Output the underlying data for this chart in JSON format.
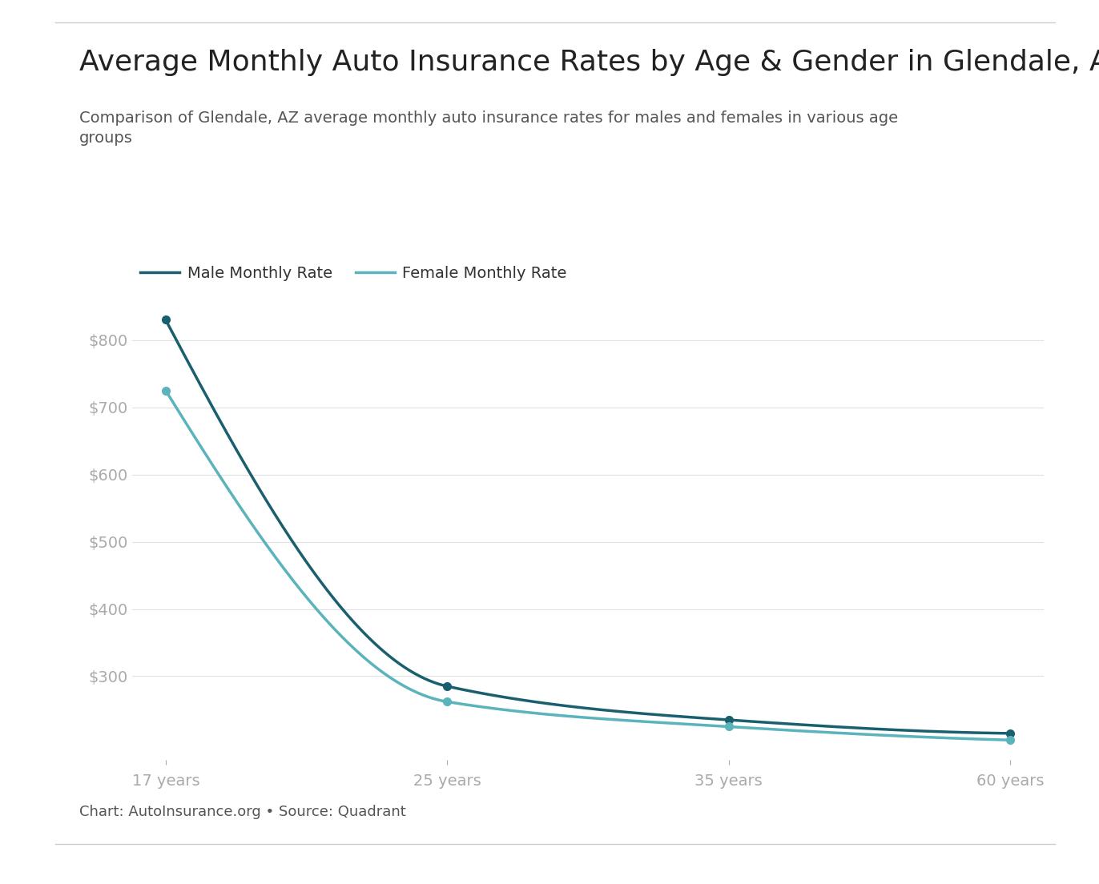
{
  "title": "Average Monthly Auto Insurance Rates by Age & Gender in Glendale, AZ",
  "subtitle": "Comparison of Glendale, AZ average monthly auto insurance rates for males and females in various age\ngroups",
  "caption": "Chart: AutoInsurance.org • Source: Quadrant",
  "x_labels": [
    "17 years",
    "25 years",
    "35 years",
    "60 years"
  ],
  "x_positions": [
    0,
    1,
    2,
    3
  ],
  "male_values": [
    830,
    285,
    235,
    215
  ],
  "female_values": [
    725,
    262,
    225,
    205
  ],
  "male_color": "#1a5f6e",
  "female_color": "#5bb3bb",
  "male_label": "Male Monthly Rate",
  "female_label": "Female Monthly Rate",
  "y_ticks": [
    300,
    400,
    500,
    600,
    700,
    800
  ],
  "y_tick_labels": [
    "$300",
    "$400",
    "$500",
    "$600",
    "$700",
    "$800"
  ],
  "background_color": "#ffffff",
  "grid_color": "#e0e0e0",
  "title_fontsize": 26,
  "subtitle_fontsize": 14,
  "caption_fontsize": 13,
  "tick_label_color": "#aaaaaa",
  "title_color": "#222222",
  "subtitle_color": "#555555",
  "line_width": 2.5,
  "marker_size": 7
}
